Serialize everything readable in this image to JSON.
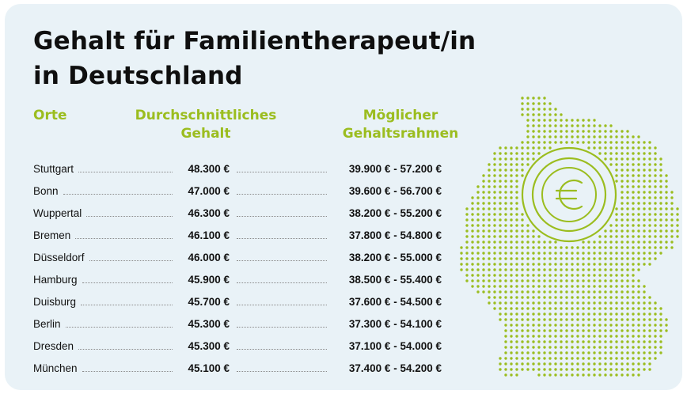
{
  "title": {
    "line1": "Gehalt für Familientherapeut/in",
    "line2": "in Deutschland"
  },
  "headers": {
    "orte": "Orte",
    "avg_line1": "Durchschnittliches",
    "avg_line2": "Gehalt",
    "range_line1": "Möglicher",
    "range_line2": "Gehaltsrahmen"
  },
  "rows": [
    {
      "city": "Stuttgart",
      "avg": "48.300 €",
      "range": "39.900 € - 57.200 €"
    },
    {
      "city": "Bonn",
      "avg": "47.000 €",
      "range": "39.600 € - 56.700 €"
    },
    {
      "city": "Wuppertal",
      "avg": "46.300 €",
      "range": "38.200 € - 55.200 €"
    },
    {
      "city": "Bremen",
      "avg": "46.100 €",
      "range": "37.800 € - 54.800 €"
    },
    {
      "city": "Düsseldorf",
      "avg": "46.000 €",
      "range": "38.200 € - 55.000 €"
    },
    {
      "city": "Hamburg",
      "avg": "45.900 €",
      "range": "38.500 € - 55.400 €"
    },
    {
      "city": "Duisburg",
      "avg": "45.700 €",
      "range": "37.600 € - 54.500 €"
    },
    {
      "city": "Berlin",
      "avg": "45.300 €",
      "range": "37.300 € - 54.100 €"
    },
    {
      "city": "Dresden",
      "avg": "45.300 €",
      "range": "37.100 € - 54.000 €"
    },
    {
      "city": "München",
      "avg": "45.100 €",
      "range": "37.400 € - 54.200 €"
    }
  ],
  "colors": {
    "background": "#e9f2f7",
    "accent": "#9bbd1f",
    "text": "#121212"
  },
  "map": {
    "icon": "euro-icon",
    "depicts": "dotted-map-of-germany"
  }
}
